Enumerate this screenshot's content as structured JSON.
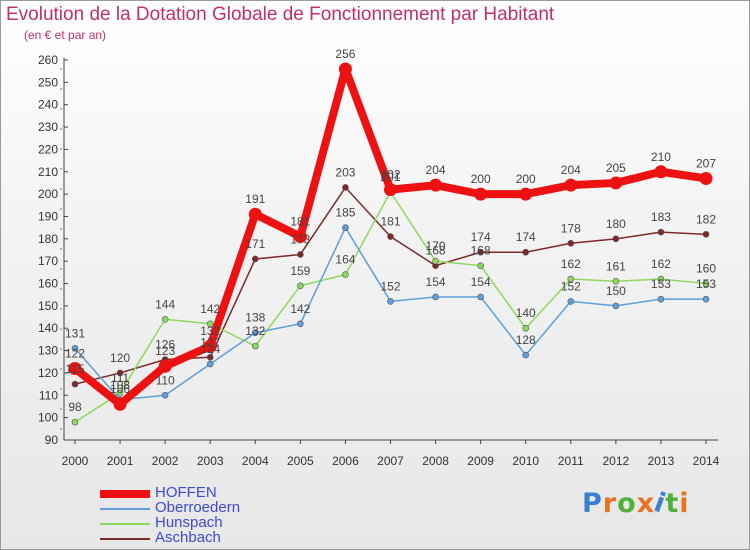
{
  "header": {
    "title": "Evolution de la Dotation Globale de Fonctionnement par Habitant",
    "subtitle": "(en € et par an)"
  },
  "logo": {
    "text": "Proxiti",
    "colors": [
      "#3a7fd0",
      "#e8731f",
      "#4fb03c",
      "#e8731f",
      "#3a7fd0",
      "#4fb03c",
      "#e8731f"
    ]
  },
  "chart_data": {
    "type": "line",
    "title": "Evolution de la Dotation Globale de Fonctionnement par Habitant",
    "subtitle": "(en € et par an)",
    "x": [
      "2000",
      "2001",
      "2002",
      "2003",
      "2004",
      "2005",
      "2006",
      "2007",
      "2008",
      "2009",
      "2010",
      "2011",
      "2012",
      "2013",
      "2014"
    ],
    "ylim": [
      90,
      260
    ],
    "yticks": [
      90,
      100,
      110,
      120,
      130,
      140,
      150,
      160,
      170,
      180,
      190,
      200,
      210,
      220,
      230,
      240,
      250,
      260
    ],
    "grid": false,
    "legend": "bottom-left",
    "series": [
      {
        "name": "HOFFEN",
        "color": "#ee1111",
        "values": [
          122,
          106,
          123,
          132,
          191,
          181,
          256,
          202,
          204,
          200,
          200,
          204,
          205,
          210,
          207
        ]
      },
      {
        "name": "Oberroedern",
        "color": "#5f9ed8",
        "values": [
          131,
          108,
          110,
          124,
          138,
          142,
          185,
          152,
          154,
          154,
          128,
          152,
          150,
          153,
          153
        ]
      },
      {
        "name": "Hunspach",
        "color": "#8ed860",
        "values": [
          98,
          111,
          144,
          142,
          132,
          159,
          164,
          201,
          170,
          168,
          140,
          162,
          161,
          162,
          160
        ]
      },
      {
        "name": "Aschbach",
        "color": "#7a2a2a",
        "values": [
          115,
          120,
          126,
          127,
          171,
          173,
          203,
          181,
          168,
          174,
          174,
          178,
          180,
          183,
          182
        ]
      }
    ],
    "value_labels": [
      [
        122,
        106,
        123,
        132,
        191,
        181,
        256,
        202,
        204,
        200,
        200,
        204,
        205,
        210,
        207
      ],
      [
        131,
        108,
        110,
        124,
        138,
        142,
        185,
        152,
        154,
        154,
        128,
        152,
        150,
        153,
        153
      ],
      [
        98,
        111,
        144,
        142,
        132,
        159,
        164,
        201,
        170,
        168,
        140,
        162,
        161,
        162,
        160
      ],
      [
        115,
        120,
        126,
        127,
        171,
        173,
        203,
        181,
        168,
        174,
        174,
        178,
        180,
        183,
        182
      ]
    ]
  }
}
